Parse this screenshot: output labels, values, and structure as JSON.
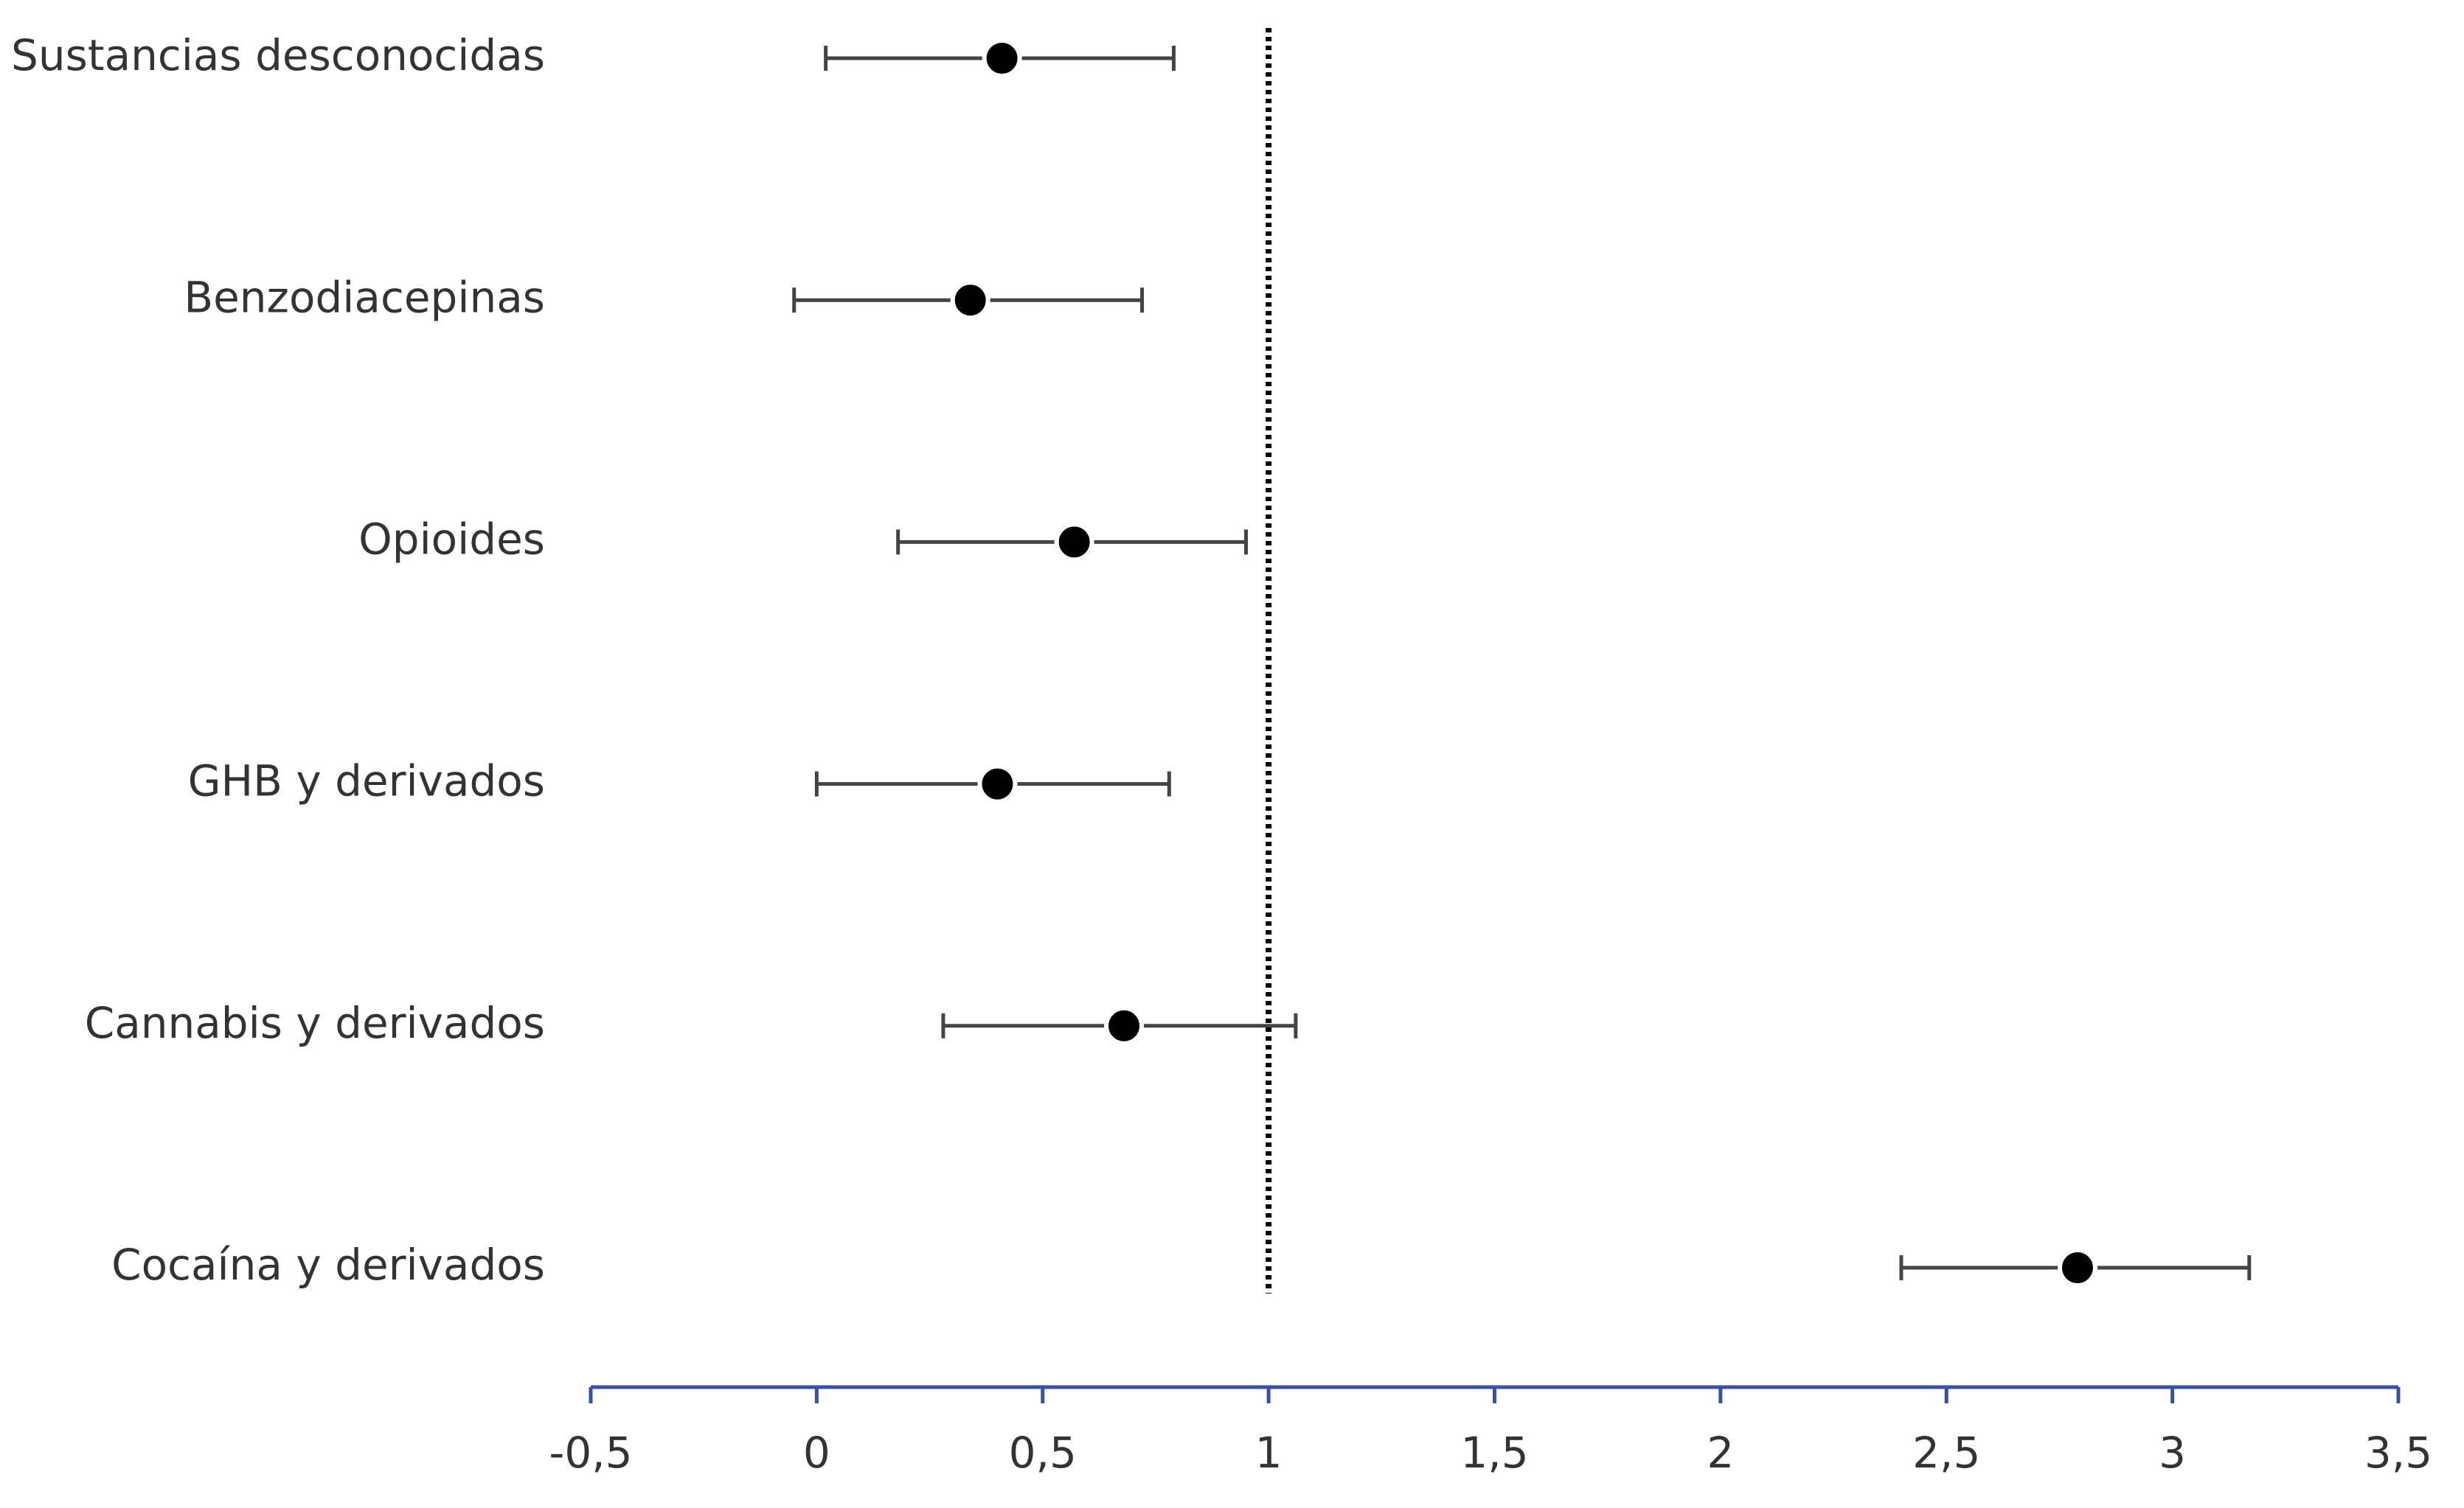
{
  "chart_data": {
    "type": "forest",
    "categories": [
      "Sustancias desconocidas",
      "Benzodiacepinas",
      "Opioides",
      "GHB y derivados",
      "Cannabis y derivados",
      "Cocaína y derivados"
    ],
    "values": [
      0.41,
      0.34,
      0.57,
      0.4,
      0.68,
      2.79
    ],
    "lower": [
      0.02,
      -0.05,
      0.18,
      0.0,
      0.28,
      2.4
    ],
    "upper": [
      0.79,
      0.72,
      0.95,
      0.78,
      1.06,
      3.17
    ],
    "color": "#000000",
    "reference_line": 1,
    "xlim": [
      -0.5,
      3.5
    ],
    "xticks": [
      {
        "value": -0.5,
        "label": "-0,5"
      },
      0,
      {
        "value": 0.5,
        "label": "0,5"
      },
      1,
      {
        "value": 1.5,
        "label": "1,5"
      },
      2,
      {
        "value": 2.5,
        "label": "2,5"
      },
      3,
      {
        "value": 3.5,
        "label": "3,5"
      }
    ]
  }
}
